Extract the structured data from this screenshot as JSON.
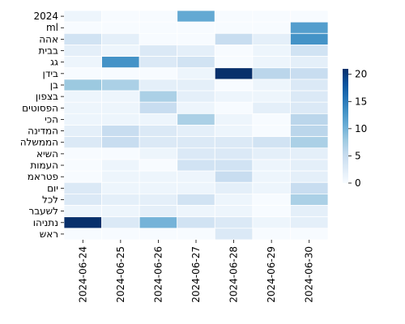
{
  "chart_data": {
    "type": "heatmap",
    "title": "",
    "xlabel": "",
    "ylabel": "",
    "x_categories": [
      "2024-06-24",
      "2024-06-25",
      "2024-06-26",
      "2024-06-27",
      "2024-06-28",
      "2024-06-29",
      "2024-06-30"
    ],
    "y_categories": [
      "2024",
      "ml",
      "אהה",
      "בבית",
      "גג",
      "בידן",
      "בן",
      "בצפון",
      "הפסוטים",
      "הכי",
      "המדינה",
      "הממשלה",
      "השיא",
      "העמות",
      "פטראמ",
      "יום",
      "לכל",
      "לשעבר",
      "נתניהו",
      "ראש"
    ],
    "values": [
      [
        1,
        0,
        0,
        11,
        0,
        0,
        0
      ],
      [
        0,
        0,
        0,
        0,
        0,
        0,
        12
      ],
      [
        4,
        2,
        0,
        0,
        5,
        2,
        13
      ],
      [
        2,
        1,
        3,
        2,
        0,
        1,
        4
      ],
      [
        1,
        13,
        3,
        4,
        0,
        1,
        2
      ],
      [
        0,
        0,
        0,
        1,
        21,
        6,
        5
      ],
      [
        8,
        7,
        2,
        2,
        0,
        1,
        3
      ],
      [
        1,
        1,
        7,
        2,
        1,
        1,
        3
      ],
      [
        1,
        1,
        5,
        1,
        0,
        2,
        3
      ],
      [
        1,
        1,
        1,
        7,
        1,
        0,
        6
      ],
      [
        2,
        5,
        3,
        2,
        1,
        0,
        6
      ],
      [
        3,
        5,
        3,
        3,
        3,
        4,
        7
      ],
      [
        0,
        0,
        1,
        3,
        3,
        2,
        2
      ],
      [
        0,
        1,
        0,
        4,
        4,
        1,
        2
      ],
      [
        0,
        1,
        1,
        1,
        5,
        1,
        2
      ],
      [
        3,
        1,
        1,
        1,
        2,
        1,
        5
      ],
      [
        3,
        2,
        2,
        4,
        1,
        0,
        7
      ],
      [
        1,
        1,
        2,
        1,
        1,
        0,
        2
      ],
      [
        21,
        3,
        10,
        4,
        3,
        1,
        2
      ],
      [
        0,
        0,
        0,
        0,
        3,
        0,
        0
      ]
    ],
    "colorbar": {
      "min": 0,
      "max": 21,
      "ticks": [
        0,
        5,
        10,
        15,
        20
      ]
    },
    "colormap": [
      "#f7fbff",
      "#deebf7",
      "#c6dbef",
      "#9ecae1",
      "#6baed6",
      "#4292c6",
      "#2171b5",
      "#08519c",
      "#08306b"
    ]
  }
}
